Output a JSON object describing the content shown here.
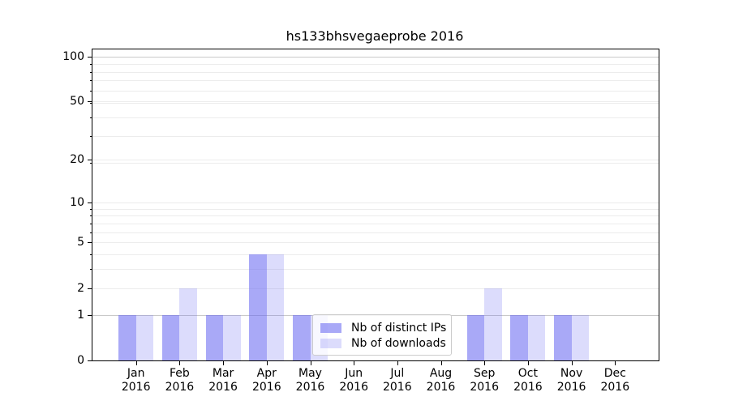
{
  "chart_data": {
    "type": "bar",
    "title": "hs133bhsvegaeprobe 2016",
    "x_categories": [
      "Jan",
      "Feb",
      "Mar",
      "Apr",
      "May",
      "Jun",
      "Jul",
      "Aug",
      "Sep",
      "Oct",
      "Nov",
      "Dec"
    ],
    "x_year": "2016",
    "series": [
      {
        "name": "Nb of distinct IPs",
        "color": "rgba(102,102,240,0.56)",
        "values": [
          1,
          1,
          1,
          4,
          1,
          0,
          0,
          0,
          1,
          1,
          1,
          0
        ]
      },
      {
        "name": "Nb of downloads",
        "color": "rgba(102,102,240,0.23)",
        "values": [
          1,
          2,
          1,
          4,
          1,
          0,
          0,
          0,
          2,
          1,
          1,
          0
        ]
      }
    ],
    "y_axis": {
      "scale": "log1p",
      "tick_values": [
        0,
        1,
        2,
        5,
        10,
        20,
        50,
        100
      ],
      "minor_values": [
        1,
        2,
        3,
        4,
        5,
        6,
        7,
        8,
        9,
        19,
        29,
        39,
        49,
        59,
        69,
        79,
        89,
        99
      ],
      "ylim": [
        0,
        111
      ]
    },
    "legend": {
      "position": "lower-center",
      "items": [
        "Nb of distinct IPs",
        "Nb of downloads"
      ]
    },
    "grid": true
  },
  "colors": {
    "bar_distinct_ips": "rgba(102,102,240,0.56)",
    "bar_downloads": "rgba(102,102,240,0.23)",
    "grid_major": "#c9c9c9",
    "grid_minor": "#ececec",
    "axis": "#000000",
    "legend_border": "#cccccc"
  }
}
